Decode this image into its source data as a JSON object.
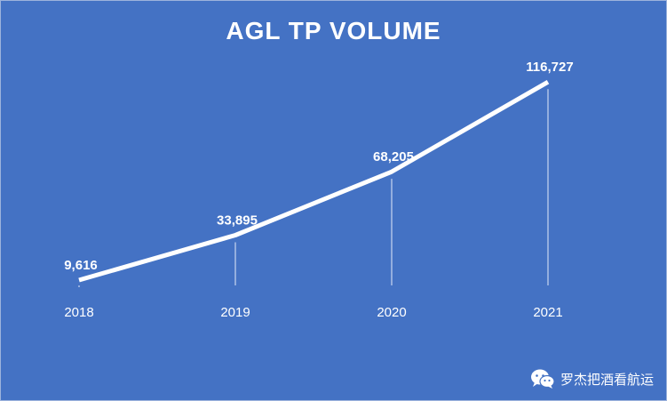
{
  "chart_data": {
    "type": "line",
    "title": "AGL TP VOLUME",
    "categories": [
      "2018",
      "2019",
      "2020",
      "2021"
    ],
    "values": [
      9616,
      33895,
      68205,
      116727
    ],
    "value_labels": [
      "9,616",
      "33,895",
      "68,205",
      "116,727"
    ],
    "xlabel": "",
    "ylabel": "",
    "ylim": [
      0,
      125000
    ],
    "grid": false,
    "legend": "none"
  },
  "watermark": {
    "icon": "wechat-icon",
    "text": "罗杰把酒看航运"
  },
  "colors": {
    "background": "#4472c4",
    "line": "#ffffff",
    "text": "#ffffff",
    "drop_line": "#c9d6ef"
  }
}
